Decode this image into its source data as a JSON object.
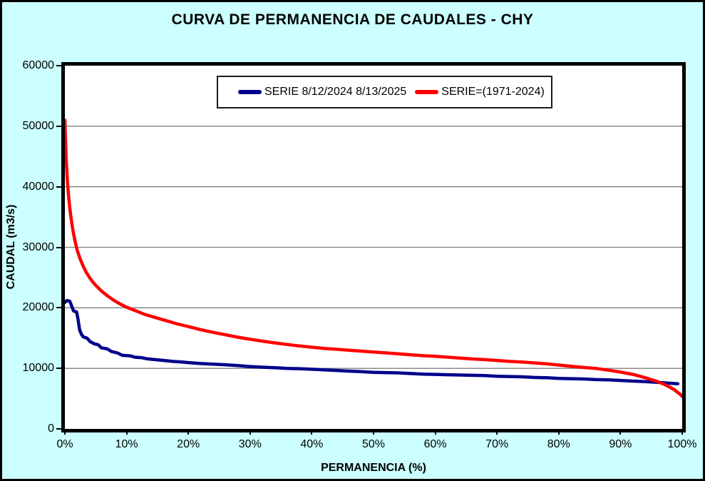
{
  "figure": {
    "background_color": "#CCFFFF",
    "plot_background_color": "#FFFFFF",
    "frame_color": "#000000"
  },
  "chart_data": {
    "type": "line",
    "title": "CURVA DE PERMANENCIA DE CAUDALES - CHY",
    "xlabel": "PERMANENCIA (%)",
    "ylabel": "CAUDAL (m3/s)",
    "xlim": [
      0,
      100
    ],
    "ylim": [
      0,
      60000
    ],
    "grid": "horizontal",
    "gridline_color": "#808080",
    "legend_position": "top-center-inside",
    "x_ticks": [
      {
        "value": 0,
        "label": "0%"
      },
      {
        "value": 10,
        "label": "10%"
      },
      {
        "value": 20,
        "label": "20%"
      },
      {
        "value": 30,
        "label": "30%"
      },
      {
        "value": 40,
        "label": "40%"
      },
      {
        "value": 50,
        "label": "50%"
      },
      {
        "value": 60,
        "label": "60%"
      },
      {
        "value": 70,
        "label": "70%"
      },
      {
        "value": 80,
        "label": "80%"
      },
      {
        "value": 90,
        "label": "90%"
      },
      {
        "value": 100,
        "label": "100%"
      }
    ],
    "y_ticks": [
      {
        "value": 0,
        "label": "0"
      },
      {
        "value": 10000,
        "label": "10000"
      },
      {
        "value": 20000,
        "label": "20000"
      },
      {
        "value": 30000,
        "label": "30000"
      },
      {
        "value": 40000,
        "label": "40000"
      },
      {
        "value": 50000,
        "label": "50000"
      },
      {
        "value": 60000,
        "label": "60000"
      }
    ],
    "series": [
      {
        "name": "SERIE 8/12/2024 8/13/2025",
        "color": "#00008B",
        "line_width": 4.5,
        "points": [
          [
            0,
            20900
          ],
          [
            0.3,
            21200
          ],
          [
            0.8,
            21100
          ],
          [
            1.1,
            20300
          ],
          [
            1.4,
            19500
          ],
          [
            1.9,
            19300
          ],
          [
            2.1,
            18300
          ],
          [
            2.4,
            16300
          ],
          [
            2.7,
            15600
          ],
          [
            3,
            15200
          ],
          [
            3.6,
            15000
          ],
          [
            4.1,
            14400
          ],
          [
            4.8,
            14050
          ],
          [
            5.4,
            13900
          ],
          [
            5.9,
            13400
          ],
          [
            6.9,
            13200
          ],
          [
            7.5,
            12800
          ],
          [
            8.5,
            12550
          ],
          [
            9.3,
            12150
          ],
          [
            10.7,
            12050
          ],
          [
            11.3,
            11850
          ],
          [
            12.5,
            11750
          ],
          [
            13.2,
            11600
          ],
          [
            14,
            11500
          ],
          [
            15,
            11400
          ],
          [
            16,
            11300
          ],
          [
            17.5,
            11150
          ],
          [
            19,
            11050
          ],
          [
            20,
            10950
          ],
          [
            22,
            10800
          ],
          [
            24,
            10700
          ],
          [
            26,
            10600
          ],
          [
            28,
            10450
          ],
          [
            30,
            10300
          ],
          [
            32,
            10200
          ],
          [
            34,
            10100
          ],
          [
            36,
            10000
          ],
          [
            38,
            9950
          ],
          [
            40,
            9850
          ],
          [
            42,
            9750
          ],
          [
            44,
            9650
          ],
          [
            46,
            9550
          ],
          [
            48,
            9450
          ],
          [
            50,
            9350
          ],
          [
            52,
            9300
          ],
          [
            54,
            9250
          ],
          [
            56,
            9150
          ],
          [
            58,
            9050
          ],
          [
            60,
            9000
          ],
          [
            62,
            8950
          ],
          [
            64,
            8900
          ],
          [
            66,
            8850
          ],
          [
            68,
            8800
          ],
          [
            70,
            8700
          ],
          [
            72,
            8650
          ],
          [
            74,
            8600
          ],
          [
            76,
            8500
          ],
          [
            78,
            8450
          ],
          [
            80,
            8350
          ],
          [
            82,
            8300
          ],
          [
            84,
            8250
          ],
          [
            86,
            8150
          ],
          [
            88,
            8100
          ],
          [
            90,
            8000
          ],
          [
            92,
            7900
          ],
          [
            94,
            7800
          ],
          [
            96,
            7700
          ],
          [
            98,
            7550
          ],
          [
            99.3,
            7450
          ]
        ]
      },
      {
        "name": "SERIE=(1971-2024)",
        "color": "#FF0000",
        "line_width": 4.5,
        "points": [
          [
            0,
            51000
          ],
          [
            0.2,
            45000
          ],
          [
            0.4,
            41000
          ],
          [
            0.6,
            38500
          ],
          [
            0.8,
            36500
          ],
          [
            1,
            34800
          ],
          [
            1.3,
            32800
          ],
          [
            1.6,
            31200
          ],
          [
            2,
            29500
          ],
          [
            2.5,
            28000
          ],
          [
            3,
            26800
          ],
          [
            3.5,
            25800
          ],
          [
            4,
            25000
          ],
          [
            4.5,
            24300
          ],
          [
            5,
            23700
          ],
          [
            6,
            22700
          ],
          [
            7,
            21900
          ],
          [
            8,
            21200
          ],
          [
            9,
            20600
          ],
          [
            10,
            20100
          ],
          [
            11,
            19700
          ],
          [
            12,
            19300
          ],
          [
            13,
            18900
          ],
          [
            14,
            18600
          ],
          [
            15,
            18300
          ],
          [
            16,
            18000
          ],
          [
            17,
            17700
          ],
          [
            18,
            17400
          ],
          [
            19,
            17150
          ],
          [
            20,
            16900
          ],
          [
            22,
            16400
          ],
          [
            24,
            15950
          ],
          [
            26,
            15550
          ],
          [
            28,
            15150
          ],
          [
            30,
            14800
          ],
          [
            32,
            14500
          ],
          [
            34,
            14200
          ],
          [
            36,
            13950
          ],
          [
            38,
            13700
          ],
          [
            40,
            13500
          ],
          [
            42,
            13300
          ],
          [
            44,
            13150
          ],
          [
            46,
            13000
          ],
          [
            48,
            12850
          ],
          [
            50,
            12700
          ],
          [
            52,
            12550
          ],
          [
            54,
            12400
          ],
          [
            56,
            12250
          ],
          [
            58,
            12100
          ],
          [
            60,
            12000
          ],
          [
            62,
            11850
          ],
          [
            64,
            11700
          ],
          [
            66,
            11550
          ],
          [
            68,
            11450
          ],
          [
            70,
            11300
          ],
          [
            72,
            11150
          ],
          [
            74,
            11050
          ],
          [
            76,
            10900
          ],
          [
            78,
            10750
          ],
          [
            80,
            10550
          ],
          [
            82,
            10350
          ],
          [
            84,
            10150
          ],
          [
            86,
            10000
          ],
          [
            88,
            9700
          ],
          [
            90,
            9400
          ],
          [
            91,
            9200
          ],
          [
            92,
            9000
          ],
          [
            93,
            8750
          ],
          [
            94,
            8450
          ],
          [
            95,
            8150
          ],
          [
            96,
            7800
          ],
          [
            97,
            7400
          ],
          [
            98,
            6900
          ],
          [
            98.7,
            6500
          ],
          [
            99.3,
            6000
          ],
          [
            99.7,
            5700
          ],
          [
            100,
            5350
          ]
        ]
      }
    ]
  }
}
